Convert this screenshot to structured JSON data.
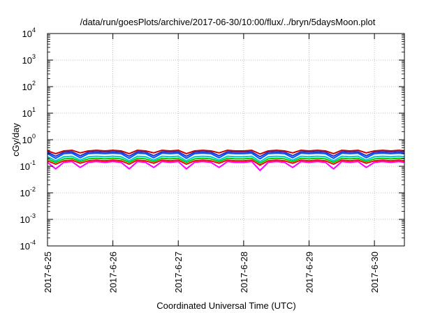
{
  "chart_data": {
    "type": "line",
    "title": "/data/run/goesPlots/archive/2017-06-30/10:00/flux/../bryn/5daysMoon.plot",
    "xlabel": "Coordinated Universal Time (UTC)",
    "ylabel": "cGy/day",
    "yscale": "log",
    "ylim": [
      0.0001,
      10000
    ],
    "xlim": [
      "2017-06-25T00:00",
      "2017-06-30T11:00"
    ],
    "grid": true,
    "legend": "none",
    "x_ticks": [
      "2017-6-25",
      "2017-6-26",
      "2017-6-27",
      "2017-6-28",
      "2017-6-29",
      "2017-6-30"
    ],
    "y_ticks": [
      {
        "base": "10",
        "exp": "-4"
      },
      {
        "base": "10",
        "exp": "-3"
      },
      {
        "base": "10",
        "exp": "-2"
      },
      {
        "base": "10",
        "exp": "-1"
      },
      {
        "base": "10",
        "exp": "0"
      },
      {
        "base": "10",
        "exp": "1"
      },
      {
        "base": "10",
        "exp": "2"
      },
      {
        "base": "10",
        "exp": "3"
      },
      {
        "base": "10",
        "exp": "4"
      }
    ],
    "x": [
      "2017-06-25T00:00",
      "2017-06-25T03:00",
      "2017-06-25T06:00",
      "2017-06-25T09:00",
      "2017-06-25T12:00",
      "2017-06-25T15:00",
      "2017-06-25T18:00",
      "2017-06-25T21:00",
      "2017-06-26T00:00",
      "2017-06-26T03:00",
      "2017-06-26T06:00",
      "2017-06-26T09:00",
      "2017-06-26T12:00",
      "2017-06-26T15:00",
      "2017-06-26T18:00",
      "2017-06-26T21:00",
      "2017-06-27T00:00",
      "2017-06-27T03:00",
      "2017-06-27T06:00",
      "2017-06-27T09:00",
      "2017-06-27T12:00",
      "2017-06-27T15:00",
      "2017-06-27T18:00",
      "2017-06-27T21:00",
      "2017-06-28T00:00",
      "2017-06-28T03:00",
      "2017-06-28T06:00",
      "2017-06-28T09:00",
      "2017-06-28T12:00",
      "2017-06-28T15:00",
      "2017-06-28T18:00",
      "2017-06-28T21:00",
      "2017-06-29T00:00",
      "2017-06-29T03:00",
      "2017-06-29T06:00",
      "2017-06-29T09:00",
      "2017-06-29T12:00",
      "2017-06-29T15:00",
      "2017-06-29T18:00",
      "2017-06-29T21:00",
      "2017-06-30T00:00",
      "2017-06-30T03:00",
      "2017-06-30T06:00",
      "2017-06-30T09:00",
      "2017-06-30T11:00"
    ],
    "series": [
      {
        "color": "#ff00ff",
        "values": [
          0.14,
          0.08,
          0.14,
          0.15,
          0.09,
          0.14,
          0.15,
          0.14,
          0.15,
          0.14,
          0.08,
          0.15,
          0.14,
          0.09,
          0.15,
          0.14,
          0.15,
          0.08,
          0.14,
          0.15,
          0.14,
          0.09,
          0.15,
          0.14,
          0.14,
          0.15,
          0.07,
          0.14,
          0.15,
          0.14,
          0.09,
          0.15,
          0.14,
          0.15,
          0.14,
          0.08,
          0.15,
          0.14,
          0.15,
          0.09,
          0.14,
          0.15,
          0.14,
          0.15,
          0.14
        ]
      },
      {
        "color": "#ff0000",
        "values": [
          0.16,
          0.12,
          0.16,
          0.17,
          0.13,
          0.16,
          0.17,
          0.16,
          0.17,
          0.16,
          0.12,
          0.17,
          0.16,
          0.13,
          0.17,
          0.16,
          0.17,
          0.12,
          0.16,
          0.17,
          0.16,
          0.13,
          0.17,
          0.16,
          0.16,
          0.17,
          0.11,
          0.16,
          0.17,
          0.16,
          0.13,
          0.17,
          0.16,
          0.17,
          0.16,
          0.12,
          0.17,
          0.16,
          0.17,
          0.13,
          0.16,
          0.17,
          0.16,
          0.17,
          0.16
        ]
      },
      {
        "color": "#00cc00",
        "values": [
          0.19,
          0.14,
          0.19,
          0.2,
          0.15,
          0.19,
          0.2,
          0.19,
          0.2,
          0.19,
          0.14,
          0.2,
          0.19,
          0.15,
          0.2,
          0.19,
          0.2,
          0.14,
          0.19,
          0.2,
          0.19,
          0.15,
          0.2,
          0.19,
          0.19,
          0.2,
          0.13,
          0.19,
          0.2,
          0.19,
          0.15,
          0.2,
          0.19,
          0.2,
          0.19,
          0.14,
          0.2,
          0.19,
          0.2,
          0.15,
          0.19,
          0.2,
          0.19,
          0.2,
          0.19
        ]
      },
      {
        "color": "#00cccc",
        "values": [
          0.23,
          0.16,
          0.23,
          0.24,
          0.17,
          0.23,
          0.24,
          0.23,
          0.24,
          0.23,
          0.16,
          0.24,
          0.23,
          0.17,
          0.24,
          0.23,
          0.24,
          0.16,
          0.23,
          0.24,
          0.23,
          0.17,
          0.24,
          0.23,
          0.23,
          0.24,
          0.15,
          0.23,
          0.24,
          0.23,
          0.17,
          0.24,
          0.23,
          0.24,
          0.23,
          0.16,
          0.24,
          0.23,
          0.24,
          0.17,
          0.23,
          0.24,
          0.23,
          0.24,
          0.23
        ]
      },
      {
        "color": "#0055ff",
        "values": [
          0.3,
          0.2,
          0.3,
          0.31,
          0.21,
          0.3,
          0.31,
          0.3,
          0.31,
          0.3,
          0.2,
          0.31,
          0.3,
          0.21,
          0.31,
          0.3,
          0.31,
          0.2,
          0.3,
          0.31,
          0.3,
          0.21,
          0.31,
          0.3,
          0.3,
          0.31,
          0.19,
          0.3,
          0.31,
          0.3,
          0.21,
          0.31,
          0.3,
          0.31,
          0.3,
          0.2,
          0.31,
          0.3,
          0.31,
          0.21,
          0.3,
          0.31,
          0.3,
          0.31,
          0.3
        ]
      },
      {
        "color": "#cc0000",
        "values": [
          0.38,
          0.3,
          0.38,
          0.4,
          0.32,
          0.38,
          0.4,
          0.38,
          0.4,
          0.38,
          0.3,
          0.4,
          0.38,
          0.32,
          0.4,
          0.38,
          0.4,
          0.3,
          0.38,
          0.4,
          0.38,
          0.32,
          0.4,
          0.38,
          0.38,
          0.4,
          0.29,
          0.38,
          0.4,
          0.38,
          0.32,
          0.4,
          0.38,
          0.4,
          0.38,
          0.3,
          0.4,
          0.38,
          0.4,
          0.32,
          0.38,
          0.4,
          0.38,
          0.4,
          0.38
        ]
      },
      {
        "color": "#2233cc",
        "values": [
          0.34,
          0.24,
          0.34,
          0.35,
          0.25,
          0.34,
          0.35,
          0.34,
          0.35,
          0.34,
          0.24,
          0.35,
          0.34,
          0.25,
          0.35,
          0.34,
          0.35,
          0.24,
          0.34,
          0.35,
          0.34,
          0.25,
          0.35,
          0.34,
          0.34,
          0.35,
          0.23,
          0.34,
          0.35,
          0.34,
          0.25,
          0.35,
          0.34,
          0.35,
          0.34,
          0.24,
          0.35,
          0.34,
          0.35,
          0.25,
          0.34,
          0.35,
          0.34,
          0.35,
          0.34
        ]
      }
    ]
  }
}
